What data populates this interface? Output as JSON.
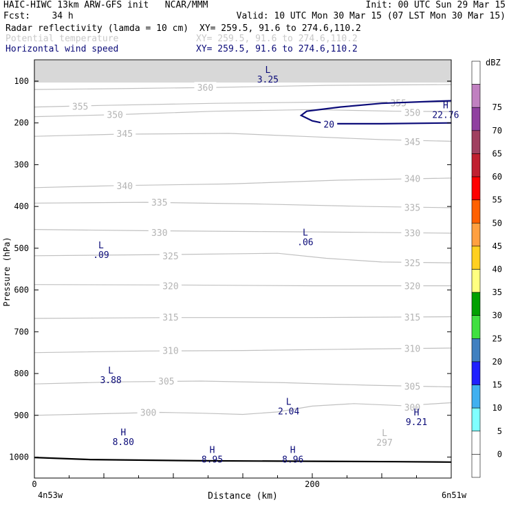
{
  "header": {
    "line1_left": "HAIC-HIWC 13km ARW-GFS init   NCAR/MMM",
    "line1_right": "Init: 00 UTC Sun 29 Mar 15",
    "line2_left": "Fcst:    34 h",
    "line2_right": "Valid: 10 UTC Mon 30 Mar 15 (07 LST Mon 30 Mar 15)",
    "fields": [
      {
        "name": "Radar reflectivity (lamda = 10 cm)",
        "xy": "XY= 259.5, 91.6 to 274.6,110.2",
        "color": "#000000"
      },
      {
        "name": "Potential temperature",
        "xy": "XY= 259.5, 91.6 to 274.6,110.2",
        "color": "#c8c8c8"
      },
      {
        "name": "Horizontal wind speed",
        "xy": "XY= 259.5, 91.6 to 274.6,110.2",
        "color": "#0a0a78"
      }
    ]
  },
  "chart_data": {
    "type": "line",
    "xlabel": "Distance (km)",
    "ylabel": "Pressure (hPa)",
    "xlim": [
      0,
      300
    ],
    "x_ticks": [
      0,
      200
    ],
    "x_end_labels": [
      "4n53w",
      "6n51w"
    ],
    "ylim": [
      1050,
      50
    ],
    "y_ticks": [
      100,
      200,
      300,
      400,
      500,
      600,
      700,
      800,
      900,
      1000
    ],
    "theta_contours": [
      {
        "value": "300",
        "label_positions": [
          [
            82,
            893
          ],
          [
            272,
            881
          ]
        ],
        "points": [
          [
            0,
            900
          ],
          [
            40,
            897
          ],
          [
            90,
            893
          ],
          [
            120,
            895
          ],
          [
            150,
            898
          ],
          [
            175,
            892
          ],
          [
            200,
            878
          ],
          [
            230,
            872
          ],
          [
            265,
            877
          ],
          [
            300,
            870
          ]
        ]
      },
      {
        "value": "305",
        "label_positions": [
          [
            95,
            818
          ],
          [
            272,
            830
          ]
        ],
        "points": [
          [
            0,
            825
          ],
          [
            60,
            820
          ],
          [
            120,
            818
          ],
          [
            180,
            822
          ],
          [
            240,
            828
          ],
          [
            300,
            832
          ]
        ]
      },
      {
        "value": "310",
        "label_positions": [
          [
            98,
            745
          ],
          [
            272,
            740
          ]
        ],
        "points": [
          [
            0,
            750
          ],
          [
            80,
            746
          ],
          [
            150,
            745
          ],
          [
            220,
            742
          ],
          [
            300,
            739
          ]
        ]
      },
      {
        "value": "315",
        "label_positions": [
          [
            98,
            665
          ],
          [
            272,
            665
          ]
        ],
        "points": [
          [
            0,
            668
          ],
          [
            100,
            666
          ],
          [
            200,
            666
          ],
          [
            300,
            664
          ]
        ]
      },
      {
        "value": "320",
        "label_positions": [
          [
            98,
            590
          ],
          [
            272,
            590
          ]
        ],
        "points": [
          [
            0,
            587
          ],
          [
            100,
            588
          ],
          [
            200,
            590
          ],
          [
            300,
            590
          ]
        ]
      },
      {
        "value": "325",
        "label_positions": [
          [
            98,
            518
          ],
          [
            272,
            535
          ]
        ],
        "points": [
          [
            0,
            518
          ],
          [
            100,
            515
          ],
          [
            175,
            512
          ],
          [
            210,
            524
          ],
          [
            250,
            533
          ],
          [
            300,
            535
          ]
        ]
      },
      {
        "value": "330",
        "label_positions": [
          [
            90,
            462
          ],
          [
            272,
            463
          ]
        ],
        "points": [
          [
            0,
            455
          ],
          [
            80,
            458
          ],
          [
            160,
            460
          ],
          [
            240,
            462
          ],
          [
            300,
            464
          ]
        ]
      },
      {
        "value": "335",
        "label_positions": [
          [
            90,
            390
          ],
          [
            272,
            402
          ]
        ],
        "points": [
          [
            0,
            392
          ],
          [
            80,
            390
          ],
          [
            160,
            394
          ],
          [
            240,
            400
          ],
          [
            300,
            403
          ]
        ]
      },
      {
        "value": "340",
        "label_positions": [
          [
            65,
            350
          ],
          [
            272,
            333
          ]
        ],
        "points": [
          [
            0,
            355
          ],
          [
            60,
            350
          ],
          [
            140,
            346
          ],
          [
            220,
            337
          ],
          [
            300,
            332
          ]
        ]
      },
      {
        "value": "345",
        "label_positions": [
          [
            65,
            225
          ],
          [
            272,
            245
          ]
        ],
        "points": [
          [
            0,
            232
          ],
          [
            60,
            227
          ],
          [
            140,
            225
          ],
          [
            200,
            233
          ],
          [
            250,
            240
          ],
          [
            300,
            244
          ]
        ]
      },
      {
        "value": "350",
        "label_positions": [
          [
            58,
            180
          ],
          [
            272,
            175
          ]
        ],
        "points": [
          [
            0,
            185
          ],
          [
            60,
            180
          ],
          [
            130,
            172
          ],
          [
            200,
            168
          ],
          [
            260,
            172
          ],
          [
            300,
            173
          ]
        ]
      },
      {
        "value": "355",
        "label_positions": [
          [
            33,
            160
          ],
          [
            262,
            152
          ]
        ],
        "points": [
          [
            0,
            162
          ],
          [
            50,
            158
          ],
          [
            130,
            153
          ],
          [
            210,
            150
          ],
          [
            300,
            150
          ]
        ]
      },
      {
        "value": "360",
        "label_positions": [
          [
            123,
            115
          ]
        ],
        "points": [
          [
            0,
            120
          ],
          [
            60,
            118
          ],
          [
            130,
            115
          ],
          [
            210,
            110
          ],
          [
            300,
            108
          ]
        ]
      }
    ],
    "wind_contours": [
      {
        "value": "20",
        "label_positions": [
          [
            212,
            203
          ]
        ],
        "points": [
          [
            300,
            200
          ],
          [
            250,
            202
          ],
          [
            210,
            202
          ],
          [
            200,
            195
          ],
          [
            192,
            182
          ],
          [
            196,
            172
          ],
          [
            220,
            162
          ],
          [
            250,
            153
          ],
          [
            290,
            148
          ],
          [
            300,
            147
          ]
        ]
      }
    ],
    "wind_extrema": [
      {
        "type": "L",
        "value": "3.25",
        "x": 168,
        "p": 80
      },
      {
        "type": "H",
        "value": "22.76",
        "x": 296,
        "p": 165
      },
      {
        "type": "L",
        "value": ".06",
        "x": 195,
        "p": 470
      },
      {
        "type": "L",
        "value": ".09",
        "x": 48,
        "p": 500
      },
      {
        "type": "L",
        "value": "3.88",
        "x": 55,
        "p": 800
      },
      {
        "type": "L",
        "value": "2.04",
        "x": 183,
        "p": 875
      },
      {
        "type": "H",
        "value": "9.21",
        "x": 275,
        "p": 900
      },
      {
        "type": "H",
        "value": "8.80",
        "x": 64,
        "p": 948
      },
      {
        "type": "H",
        "value": "8.95",
        "x": 128,
        "p": 990
      },
      {
        "type": "H",
        "value": "8.96",
        "x": 186,
        "p": 990
      }
    ],
    "theta_extrema": [
      {
        "type": "L",
        "value": "297",
        "x": 252,
        "p": 950
      }
    ],
    "terrain": [
      [
        0,
        1001
      ],
      [
        40,
        1006
      ],
      [
        120,
        1009
      ],
      [
        200,
        1010
      ],
      [
        260,
        1011
      ],
      [
        300,
        1012
      ]
    ],
    "colorbar": {
      "unit": "dBZ",
      "labels": [
        "75",
        "70",
        "65",
        "60",
        "55",
        "50",
        "45",
        "40",
        "35",
        "30",
        "25",
        "20",
        "15",
        "10",
        "5",
        "0"
      ],
      "colors": [
        "#ffffff",
        "#c080c0",
        "#9040a0",
        "#a04060",
        "#c02030",
        "#ff0000",
        "#ff6000",
        "#ffa040",
        "#ffd020",
        "#ffff80",
        "#00a000",
        "#40e040",
        "#4080c0",
        "#2020ff",
        "#40b0f0",
        "#80ffff",
        "#ffffff",
        "#ffffff"
      ]
    }
  }
}
